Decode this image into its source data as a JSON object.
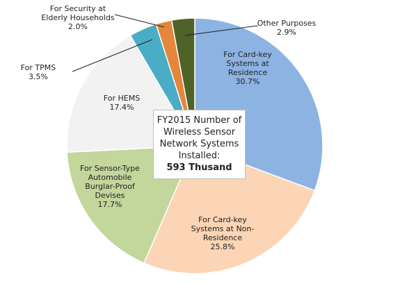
{
  "chart_data": {
    "type": "pie",
    "center_text": {
      "lines": [
        "FY2015 Number of",
        "Wireless Sensor",
        "Network Systems",
        "Installed:"
      ],
      "total": "593 Thusand"
    },
    "slices": [
      {
        "label_lines": [
          "For Card-key",
          "Systems at",
          "Residence"
        ],
        "value": 30.7,
        "value_label": "30.7%",
        "color": "#8DB3E2"
      },
      {
        "label_lines": [
          "For Card-key",
          "Systems at Non-",
          "Residence"
        ],
        "value": 25.8,
        "value_label": "25.8%",
        "color": "#FBD5B5"
      },
      {
        "label_lines": [
          "For Sensor-Type",
          "Automobile",
          "Burglar-Proof",
          "Devises"
        ],
        "value": 17.7,
        "value_label": "17.7%",
        "color": "#C3D69B"
      },
      {
        "label_lines": [
          "For HEMS"
        ],
        "value": 17.4,
        "value_label": "17.4%",
        "color": "#F2F2F2"
      },
      {
        "label_lines": [
          "For TPMS"
        ],
        "value": 3.5,
        "value_label": "3.5%",
        "color": "#4BACC6"
      },
      {
        "label_lines": [
          "For Security at",
          "Elderly Households"
        ],
        "value": 2.0,
        "value_label": "2.0%",
        "color": "#E4863B"
      },
      {
        "label_lines": [
          "Other Purposes"
        ],
        "value": 2.9,
        "value_label": "2.9%",
        "color": "#4F6228"
      }
    ]
  }
}
